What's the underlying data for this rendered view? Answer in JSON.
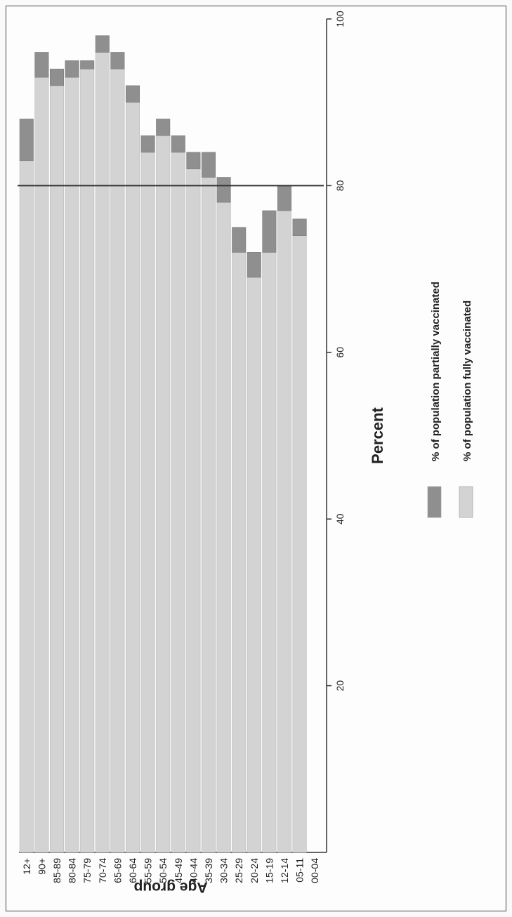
{
  "chart_data": {
    "type": "bar",
    "stacked": true,
    "orientation": "horizontal",
    "rotation": "rotated 90 degrees clockwise on the page",
    "categories": [
      "12+",
      "90+",
      "85-89",
      "80-84",
      "75-79",
      "70-74",
      "65-69",
      "60-64",
      "55-59",
      "50-54",
      "45-49",
      "40-44",
      "35-39",
      "30-34",
      "25-29",
      "20-24",
      "15-19",
      "12-14",
      "05-11",
      "00-04"
    ],
    "series": [
      {
        "name": "% of population fully vaccinated",
        "color": "#d3d3d3",
        "values": [
          83,
          93,
          92,
          93,
          94,
          96,
          94,
          90,
          84,
          86,
          84,
          82,
          81,
          78,
          72,
          69,
          72,
          77,
          74,
          0
        ]
      },
      {
        "name": "% of population partially vaccinated",
        "color": "#8f8f8f",
        "values": [
          5,
          3,
          2,
          2,
          1,
          2,
          2,
          2,
          2,
          2,
          2,
          2,
          3,
          3,
          3,
          3,
          5,
          3,
          2,
          0
        ]
      }
    ],
    "xlabel": "Percent",
    "ylabel": "Age group",
    "xlim": [
      0,
      100
    ],
    "xticks": [
      20,
      40,
      60,
      80,
      100
    ],
    "reference_line": 80,
    "reference_line_color": "#333333",
    "grid": false,
    "legend_placement": "below"
  }
}
